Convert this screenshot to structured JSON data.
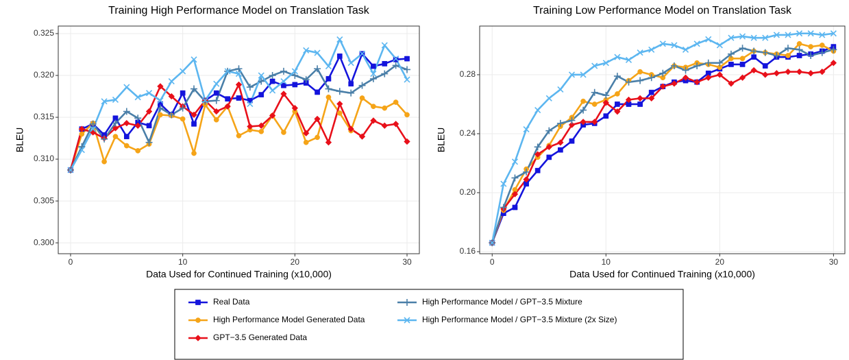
{
  "chart_data": [
    {
      "type": "line",
      "title": "Training High Performance Model on Translation Task",
      "x_label": "Data Used for Continued Training (x10,000)",
      "y_label": "BLEU",
      "x": [
        0,
        1,
        2,
        3,
        4,
        5,
        6,
        7,
        8,
        9,
        10,
        11,
        12,
        13,
        14,
        15,
        16,
        17,
        18,
        19,
        20,
        21,
        22,
        23,
        24,
        25,
        26,
        27,
        28,
        29,
        30
      ],
      "xlim": [
        -1.1,
        31.1
      ],
      "xticks": [
        0,
        10,
        20,
        30
      ],
      "ylim": [
        0.2987,
        0.3259
      ],
      "yticks": [
        {
          "value": 0.3,
          "label": "0.300"
        },
        0.305,
        {
          "value": 0.31,
          "label": "0.310"
        },
        0.315,
        {
          "value": 0.32,
          "label": "0.320"
        },
        0.325
      ],
      "grid": true,
      "series": [
        {
          "name": "Real Data",
          "color": "#1414dc",
          "marker": "square",
          "values": [
            0.3087,
            0.3136,
            0.3142,
            0.3129,
            0.3149,
            0.3127,
            0.3144,
            0.314,
            0.3166,
            0.3153,
            0.3179,
            0.3142,
            0.317,
            0.3179,
            0.3172,
            0.3173,
            0.317,
            0.3177,
            0.3193,
            0.3188,
            0.3189,
            0.3191,
            0.318,
            0.3196,
            0.3223,
            0.319,
            0.3226,
            0.3211,
            0.3214,
            0.3219,
            0.322
          ]
        },
        {
          "name": "High Performance Model Generated Data",
          "color": "#f5a418",
          "marker": "circle",
          "values": [
            0.3087,
            0.313,
            0.3143,
            0.3097,
            0.3127,
            0.3116,
            0.311,
            0.3118,
            0.3153,
            0.3152,
            0.3148,
            0.3107,
            0.3165,
            0.3147,
            0.3163,
            0.3128,
            0.3135,
            0.3133,
            0.3152,
            0.3132,
            0.3157,
            0.312,
            0.3126,
            0.3174,
            0.3155,
            0.3134,
            0.3173,
            0.3163,
            0.3161,
            0.3168,
            0.3153
          ]
        },
        {
          "name": "GPT−3.5 Generated Data",
          "color": "#e8101a",
          "marker": "diamond",
          "values": [
            0.3087,
            0.3136,
            0.3132,
            0.3125,
            0.3137,
            0.3143,
            0.314,
            0.3157,
            0.3187,
            0.3175,
            0.3163,
            0.3153,
            0.317,
            0.3157,
            0.3163,
            0.3189,
            0.3139,
            0.314,
            0.3152,
            0.3178,
            0.3161,
            0.3131,
            0.3148,
            0.312,
            0.3166,
            0.3136,
            0.3127,
            0.3146,
            0.314,
            0.3142,
            0.3121
          ]
        },
        {
          "name": "High Performance Model / GPT−3.5 Mixture",
          "color": "#4a7fa8",
          "marker": "plus",
          "values": [
            0.3087,
            0.3115,
            0.3142,
            0.3124,
            0.3143,
            0.3157,
            0.3149,
            0.312,
            0.3161,
            0.3153,
            0.3161,
            0.3184,
            0.3169,
            0.317,
            0.3205,
            0.3208,
            0.3186,
            0.3193,
            0.32,
            0.3205,
            0.32,
            0.3195,
            0.3208,
            0.3184,
            0.3181,
            0.3179,
            0.3188,
            0.3196,
            0.3202,
            0.3212,
            0.3207
          ]
        },
        {
          "name": "High Performance Model / GPT−3.5 Mixture (2x Size)",
          "color": "#5cb6f0",
          "marker": "cross",
          "values": [
            0.3087,
            0.3111,
            0.3136,
            0.3169,
            0.3171,
            0.3186,
            0.3174,
            0.3179,
            0.317,
            0.3193,
            0.3205,
            0.3219,
            0.317,
            0.319,
            0.3205,
            0.3202,
            0.3166,
            0.32,
            0.3182,
            0.3193,
            0.3205,
            0.323,
            0.3227,
            0.3211,
            0.3243,
            0.3215,
            0.3226,
            0.3202,
            0.3236,
            0.322,
            0.3195
          ]
        }
      ]
    },
    {
      "type": "line",
      "title": "Training Low Performance Model on Translation Task",
      "x_label": "Data Used for Continued Training (x10,000)",
      "y_label": "BLEU",
      "x": [
        0,
        1,
        2,
        3,
        4,
        5,
        6,
        7,
        8,
        9,
        10,
        11,
        12,
        13,
        14,
        15,
        16,
        17,
        18,
        19,
        20,
        21,
        22,
        23,
        24,
        25,
        26,
        27,
        28,
        29,
        30
      ],
      "xlim": [
        -1.1,
        31
      ],
      "xticks": [
        0,
        10,
        20,
        30
      ],
      "ylim": [
        0.1586,
        0.313
      ],
      "yticks": [
        0.16,
        {
          "value": 0.2,
          "label": "0.20"
        },
        0.24,
        0.28
      ],
      "grid": true,
      "series": [
        {
          "name": "Real Data",
          "color": "#1414dc",
          "marker": "square",
          "values": [
            0.166,
            0.186,
            0.19,
            0.206,
            0.215,
            0.224,
            0.229,
            0.235,
            0.246,
            0.247,
            0.252,
            0.26,
            0.26,
            0.26,
            0.268,
            0.272,
            0.275,
            0.276,
            0.275,
            0.281,
            0.284,
            0.287,
            0.287,
            0.292,
            0.286,
            0.292,
            0.292,
            0.293,
            0.294,
            0.296,
            0.299
          ]
        },
        {
          "name": "High Performance Model Generated Data",
          "color": "#f5a418",
          "marker": "circle",
          "values": [
            0.166,
            0.188,
            0.202,
            0.216,
            0.224,
            0.232,
            0.245,
            0.251,
            0.262,
            0.26,
            0.263,
            0.267,
            0.276,
            0.282,
            0.28,
            0.278,
            0.286,
            0.285,
            0.288,
            0.287,
            0.285,
            0.291,
            0.291,
            0.296,
            0.295,
            0.294,
            0.293,
            0.301,
            0.299,
            0.3,
            0.296
          ]
        },
        {
          "name": "GPT−3.5 Generated Data",
          "color": "#e8101a",
          "marker": "diamond",
          "values": [
            0.166,
            0.189,
            0.199,
            0.209,
            0.226,
            0.231,
            0.234,
            0.246,
            0.248,
            0.248,
            0.261,
            0.255,
            0.263,
            0.264,
            0.264,
            0.272,
            0.274,
            0.278,
            0.275,
            0.278,
            0.28,
            0.274,
            0.278,
            0.283,
            0.28,
            0.281,
            0.282,
            0.282,
            0.281,
            0.282,
            0.288
          ]
        },
        {
          "name": "High Performance Model / GPT−3.5 Mixture",
          "color": "#4a7fa8",
          "marker": "plus",
          "values": [
            0.166,
            0.19,
            0.21,
            0.214,
            0.231,
            0.242,
            0.247,
            0.249,
            0.256,
            0.268,
            0.266,
            0.279,
            0.275,
            0.276,
            0.278,
            0.281,
            0.286,
            0.283,
            0.286,
            0.288,
            0.288,
            0.294,
            0.298,
            0.296,
            0.295,
            0.293,
            0.298,
            0.297,
            0.293,
            0.295,
            0.297
          ]
        },
        {
          "name": "High Performance Model / GPT−3.5 Mixture (2x Size)",
          "color": "#5cb6f0",
          "marker": "cross",
          "values": [
            0.166,
            0.206,
            0.221,
            0.243,
            0.256,
            0.264,
            0.27,
            0.28,
            0.28,
            0.286,
            0.288,
            0.292,
            0.29,
            0.295,
            0.297,
            0.301,
            0.3,
            0.297,
            0.301,
            0.304,
            0.3,
            0.305,
            0.306,
            0.305,
            0.305,
            0.307,
            0.307,
            0.308,
            0.308,
            0.307,
            0.308
          ]
        }
      ]
    }
  ]
}
